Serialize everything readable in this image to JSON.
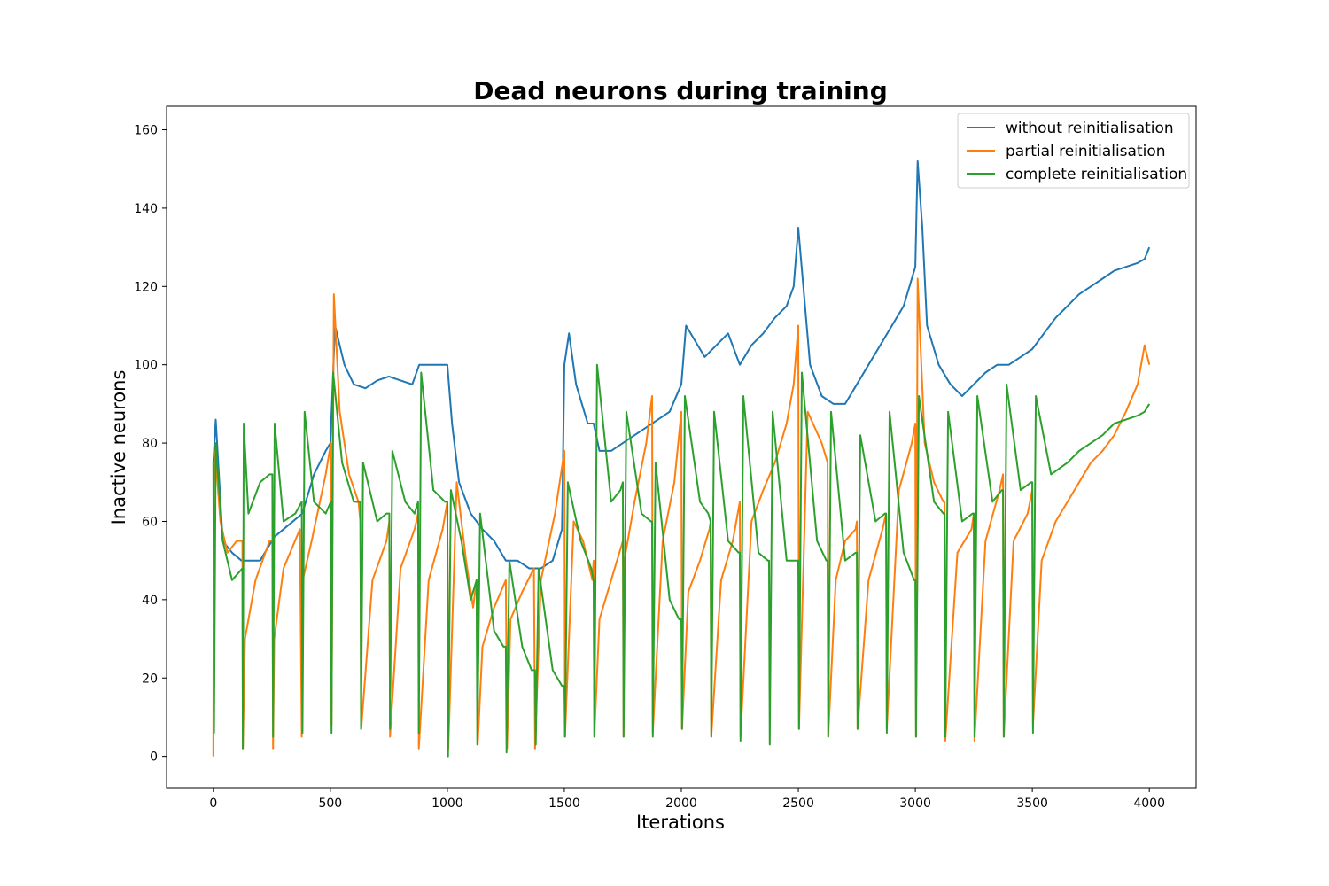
{
  "chart_data": {
    "type": "line",
    "title": "Dead neurons during training",
    "xlabel": "Iterations",
    "ylabel": "Inactive neurons",
    "xlim": [
      -200,
      4200
    ],
    "ylim": [
      -8,
      166
    ],
    "xticks": [
      0,
      500,
      1000,
      1500,
      2000,
      2500,
      3000,
      3500,
      4000
    ],
    "yticks": [
      0,
      20,
      40,
      60,
      80,
      100,
      120,
      140,
      160
    ],
    "grid": false,
    "legend_position": "top-right",
    "series": [
      {
        "name": "without reinitialisation",
        "color": "#1f77b4",
        "x": [
          0,
          10,
          40,
          80,
          120,
          200,
          260,
          300,
          380,
          430,
          480,
          500,
          520,
          560,
          600,
          650,
          700,
          750,
          800,
          850,
          880,
          920,
          960,
          1000,
          1020,
          1050,
          1100,
          1150,
          1200,
          1250,
          1300,
          1350,
          1400,
          1450,
          1490,
          1500,
          1520,
          1550,
          1600,
          1625,
          1650,
          1700,
          1750,
          1800,
          1850,
          1900,
          1950,
          2000,
          2020,
          2100,
          2150,
          2200,
          2250,
          2300,
          2350,
          2400,
          2450,
          2480,
          2500,
          2550,
          2600,
          2650,
          2700,
          2750,
          2800,
          2850,
          2900,
          2950,
          3000,
          3010,
          3030,
          3050,
          3100,
          3150,
          3200,
          3250,
          3300,
          3350,
          3400,
          3450,
          3500,
          3550,
          3600,
          3650,
          3700,
          3750,
          3800,
          3850,
          3900,
          3950,
          3980,
          4000
        ],
        "y": [
          75,
          86,
          55,
          52,
          50,
          50,
          56,
          58,
          62,
          72,
          78,
          80,
          110,
          100,
          95,
          94,
          96,
          97,
          96,
          95,
          100,
          100,
          100,
          100,
          85,
          70,
          62,
          58,
          55,
          50,
          50,
          48,
          48,
          50,
          58,
          100,
          108,
          95,
          85,
          85,
          78,
          78,
          80,
          82,
          84,
          86,
          88,
          95,
          110,
          102,
          105,
          108,
          100,
          105,
          108,
          112,
          115,
          120,
          135,
          100,
          92,
          90,
          90,
          95,
          100,
          105,
          110,
          115,
          125,
          152,
          135,
          110,
          100,
          95,
          92,
          95,
          98,
          100,
          100,
          102,
          104,
          108,
          112,
          115,
          118,
          120,
          122,
          124,
          125,
          126,
          127,
          130
        ]
      },
      {
        "name": "partial reinitialisation",
        "color": "#ff7f0e",
        "x": [
          0,
          2,
          8,
          30,
          60,
          100,
          124,
          126,
          135,
          180,
          240,
          252,
          255,
          260,
          300,
          370,
          378,
          382,
          420,
          480,
          502,
          505,
          515,
          540,
          580,
          620,
          628,
          632,
          680,
          740,
          752,
          755,
          800,
          860,
          875,
          878,
          920,
          980,
          1000,
          1004,
          1040,
          1080,
          1110,
          1125,
          1130,
          1150,
          1200,
          1250,
          1255,
          1270,
          1320,
          1370,
          1375,
          1400,
          1460,
          1500,
          1503,
          1540,
          1580,
          1620,
          1625,
          1628,
          1650,
          1700,
          1750,
          1753,
          1756,
          1800,
          1850,
          1875,
          1878,
          1920,
          1970,
          2000,
          2003,
          2030,
          2080,
          2120,
          2125,
          2128,
          2170,
          2220,
          2250,
          2253,
          2300,
          2350,
          2400,
          2450,
          2480,
          2500,
          2503,
          2540,
          2600,
          2625,
          2628,
          2660,
          2700,
          2745,
          2750,
          2753,
          2800,
          2860,
          2875,
          2878,
          2930,
          2985,
          3000,
          3003,
          3010,
          3040,
          3080,
          3120,
          3125,
          3128,
          3180,
          3240,
          3250,
          3253,
          3300,
          3360,
          3375,
          3378,
          3420,
          3480,
          3500,
          3503,
          3540,
          3600,
          3650,
          3700,
          3750,
          3800,
          3850,
          3900,
          3950,
          3980,
          4000
        ],
        "y": [
          0,
          70,
          78,
          60,
          52,
          55,
          55,
          2,
          30,
          45,
          55,
          55,
          2,
          30,
          48,
          58,
          5,
          45,
          55,
          72,
          80,
          8,
          118,
          88,
          72,
          65,
          60,
          7,
          45,
          55,
          60,
          5,
          48,
          58,
          62,
          2,
          45,
          58,
          65,
          2,
          70,
          50,
          38,
          45,
          3,
          28,
          38,
          45,
          2,
          35,
          42,
          48,
          2,
          45,
          62,
          78,
          5,
          60,
          55,
          45,
          50,
          5,
          35,
          45,
          55,
          5,
          50,
          65,
          80,
          92,
          6,
          55,
          70,
          88,
          7,
          42,
          50,
          58,
          60,
          5,
          45,
          55,
          65,
          5,
          60,
          68,
          75,
          85,
          95,
          110,
          7,
          88,
          80,
          75,
          5,
          45,
          55,
          58,
          60,
          7,
          45,
          58,
          62,
          7,
          68,
          80,
          85,
          5,
          122,
          80,
          70,
          65,
          65,
          4,
          52,
          58,
          62,
          4,
          55,
          68,
          72,
          5,
          55,
          62,
          68,
          8,
          50,
          60,
          65,
          70,
          75,
          78,
          82,
          88,
          95,
          105,
          100
        ]
      },
      {
        "name": "complete reinitialisation",
        "color": "#2ca02c",
        "x": [
          0,
          3,
          10,
          40,
          80,
          124,
          126,
          130,
          150,
          200,
          240,
          252,
          255,
          262,
          300,
          350,
          378,
          381,
          390,
          430,
          480,
          502,
          505,
          512,
          550,
          600,
          628,
          631,
          640,
          700,
          740,
          752,
          755,
          765,
          820,
          860,
          875,
          878,
          888,
          940,
          990,
          1000,
          1003,
          1015,
          1060,
          1100,
          1125,
          1128,
          1140,
          1200,
          1240,
          1250,
          1253,
          1265,
          1320,
          1360,
          1375,
          1378,
          1390,
          1450,
          1490,
          1500,
          1503,
          1515,
          1570,
          1615,
          1625,
          1628,
          1640,
          1700,
          1740,
          1750,
          1753,
          1765,
          1830,
          1870,
          1875,
          1878,
          1890,
          1950,
          1990,
          2000,
          2003,
          2015,
          2080,
          2115,
          2125,
          2128,
          2140,
          2200,
          2245,
          2250,
          2253,
          2265,
          2330,
          2370,
          2375,
          2378,
          2390,
          2450,
          2495,
          2500,
          2503,
          2515,
          2580,
          2620,
          2625,
          2628,
          2640,
          2700,
          2745,
          2750,
          2753,
          2765,
          2830,
          2870,
          2875,
          2878,
          2890,
          2950,
          2995,
          3000,
          3003,
          3015,
          3080,
          3120,
          3125,
          3128,
          3140,
          3200,
          3245,
          3250,
          3253,
          3265,
          3330,
          3370,
          3375,
          3378,
          3390,
          3450,
          3495,
          3500,
          3503,
          3515,
          3580,
          3650,
          3700,
          3750,
          3800,
          3850,
          3900,
          3950,
          3980,
          4000
        ],
        "y": [
          75,
          6,
          80,
          55,
          45,
          48,
          2,
          85,
          62,
          70,
          72,
          72,
          5,
          85,
          60,
          62,
          65,
          6,
          88,
          65,
          62,
          65,
          6,
          98,
          75,
          65,
          65,
          7,
          75,
          60,
          62,
          62,
          7,
          78,
          65,
          62,
          65,
          6,
          98,
          68,
          65,
          65,
          0,
          68,
          55,
          40,
          45,
          3,
          62,
          32,
          28,
          28,
          1,
          50,
          28,
          22,
          22,
          3,
          48,
          22,
          18,
          18,
          5,
          70,
          55,
          48,
          45,
          5,
          100,
          65,
          68,
          70,
          5,
          88,
          62,
          60,
          60,
          5,
          75,
          40,
          35,
          35,
          7,
          92,
          65,
          62,
          60,
          5,
          88,
          55,
          52,
          52,
          4,
          92,
          52,
          50,
          50,
          3,
          88,
          50,
          50,
          50,
          7,
          98,
          55,
          50,
          50,
          5,
          88,
          50,
          52,
          52,
          7,
          82,
          60,
          62,
          62,
          6,
          88,
          52,
          45,
          45,
          5,
          92,
          65,
          62,
          62,
          5,
          88,
          60,
          62,
          62,
          5,
          92,
          65,
          68,
          68,
          5,
          95,
          68,
          70,
          70,
          6,
          92,
          72,
          75,
          78,
          80,
          82,
          85,
          86,
          87,
          88,
          90
        ]
      }
    ]
  }
}
